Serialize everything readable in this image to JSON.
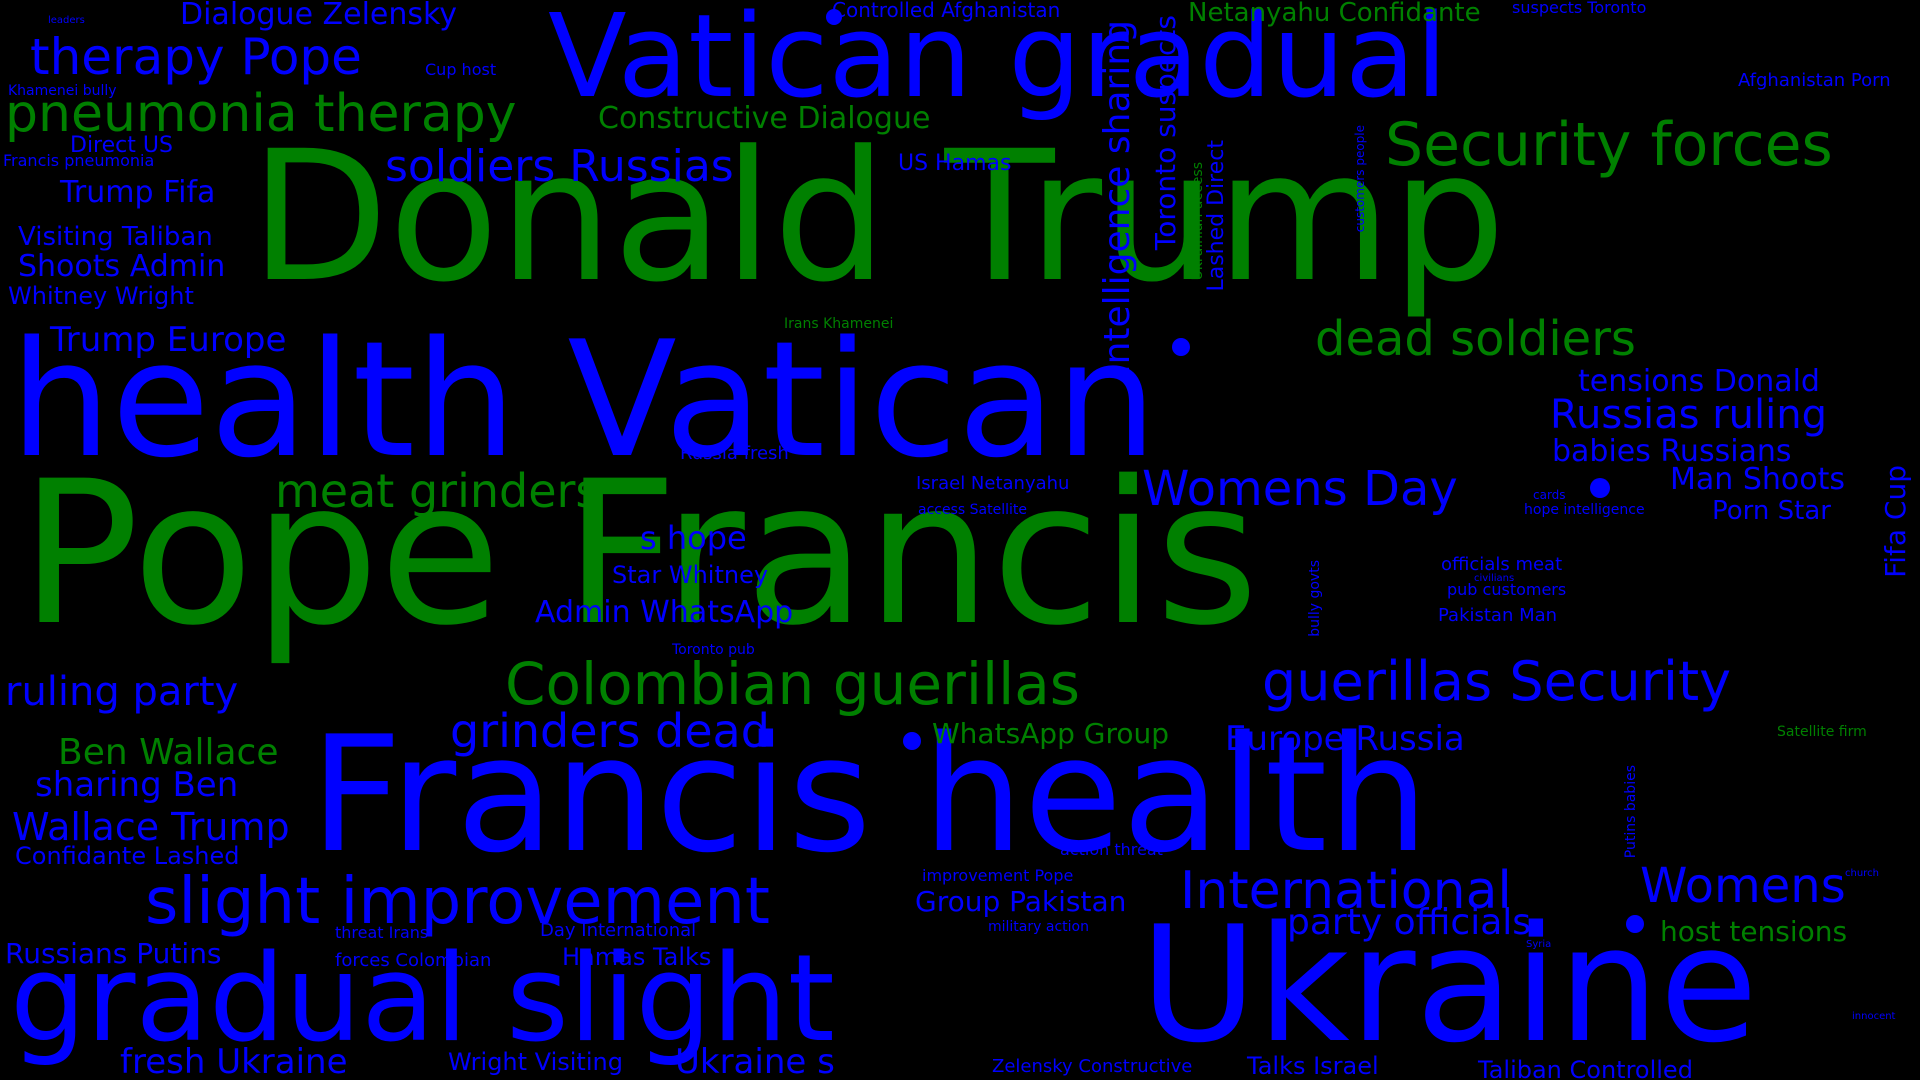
{
  "colors": {
    "background": "#000000",
    "blue": "#0000ff",
    "green": "#008000"
  },
  "words": [
    {
      "text": "Pope Francis",
      "color": "green"
    },
    {
      "text": "health Vatican",
      "color": "blue"
    },
    {
      "text": "Donald Trump",
      "color": "green"
    },
    {
      "text": "Francis health",
      "color": "blue"
    },
    {
      "text": "Ukraine",
      "color": "blue"
    },
    {
      "text": "gradual slight",
      "color": "blue"
    },
    {
      "text": "Vatican gradual",
      "color": "blue"
    },
    {
      "text": "slight improvement",
      "color": "blue"
    },
    {
      "text": "Colombian guerillas",
      "color": "green"
    },
    {
      "text": "guerillas Security",
      "color": "blue"
    },
    {
      "text": "Security forces",
      "color": "green"
    },
    {
      "text": "International",
      "color": "blue"
    },
    {
      "text": "pneumonia therapy",
      "color": "green"
    },
    {
      "text": "therapy Pope",
      "color": "blue"
    },
    {
      "text": "dead soldiers",
      "color": "green"
    },
    {
      "text": "meat grinders",
      "color": "green"
    },
    {
      "text": "grinders dead",
      "color": "blue"
    },
    {
      "text": "soldiers Russias",
      "color": "blue"
    },
    {
      "text": "Womens Day",
      "color": "blue"
    },
    {
      "text": "Womens",
      "color": "blue"
    },
    {
      "text": "intelligence sharing",
      "color": "blue"
    },
    {
      "text": "Russias ruling",
      "color": "blue"
    },
    {
      "text": "party officials",
      "color": "blue"
    },
    {
      "text": "ruling party",
      "color": "blue"
    },
    {
      "text": "Europe Russia",
      "color": "blue"
    },
    {
      "text": "Wallace Trump",
      "color": "blue"
    },
    {
      "text": "Ben Wallace",
      "color": "green"
    },
    {
      "text": "Trump Europe",
      "color": "blue"
    },
    {
      "text": "Constructive Dialogue",
      "color": "green"
    },
    {
      "text": "Dialogue Zelensky",
      "color": "blue"
    },
    {
      "text": "Ukraine s",
      "color": "blue"
    },
    {
      "text": "host tensions",
      "color": "green"
    },
    {
      "text": "sharing Ben",
      "color": "blue"
    },
    {
      "text": "Toronto suspects",
      "color": "blue"
    },
    {
      "text": "tensions Donald",
      "color": "blue"
    },
    {
      "text": "babies Russians",
      "color": "blue"
    },
    {
      "text": "Man Shoots",
      "color": "blue"
    },
    {
      "text": "Admin WhatsApp",
      "color": "blue"
    },
    {
      "text": "WhatsApp Group",
      "color": "green"
    },
    {
      "text": "Group Pakistan",
      "color": "blue"
    },
    {
      "text": "Shoots Admin",
      "color": "blue"
    },
    {
      "text": "s hope",
      "color": "blue"
    },
    {
      "text": "Russians Putins",
      "color": "blue"
    },
    {
      "text": "fresh Ukraine",
      "color": "blue"
    },
    {
      "text": "Trump Fifa",
      "color": "blue"
    },
    {
      "text": "Netanyahu Confidante",
      "color": "green"
    },
    {
      "text": "Visiting Taliban",
      "color": "blue"
    },
    {
      "text": "Star Whitney",
      "color": "blue"
    },
    {
      "text": "Wright Visiting",
      "color": "blue"
    },
    {
      "text": "Whitney Wright",
      "color": "blue"
    },
    {
      "text": "Confidante Lashed",
      "color": "blue"
    },
    {
      "text": "Taliban Controlled",
      "color": "blue"
    },
    {
      "text": "Talks Israel",
      "color": "blue"
    },
    {
      "text": "Porn Star",
      "color": "blue"
    },
    {
      "text": "Fifa Cup",
      "color": "blue"
    },
    {
      "text": "Hamas Talks",
      "color": "blue"
    },
    {
      "text": "US Hamas",
      "color": "blue"
    },
    {
      "text": "Direct US",
      "color": "blue"
    },
    {
      "text": "Lashed Direct",
      "color": "blue"
    },
    {
      "text": "Controlled Afghanistan",
      "color": "blue"
    },
    {
      "text": "Afghanistan Porn",
      "color": "blue"
    },
    {
      "text": "Zelensky Constructive",
      "color": "blue"
    },
    {
      "text": "officials meat",
      "color": "blue"
    },
    {
      "text": "pub customers",
      "color": "blue"
    },
    {
      "text": "Pakistan Man",
      "color": "blue"
    },
    {
      "text": "Russia fresh",
      "color": "blue"
    },
    {
      "text": "Israel Netanyahu",
      "color": "blue"
    },
    {
      "text": "action threat",
      "color": "blue"
    },
    {
      "text": "improvement Pope",
      "color": "blue"
    },
    {
      "text": "forces Colombian",
      "color": "blue"
    },
    {
      "text": "threat Irans",
      "color": "blue"
    },
    {
      "text": "Day International",
      "color": "blue"
    },
    {
      "text": "military action",
      "color": "blue"
    },
    {
      "text": "Francis pneumonia",
      "color": "blue"
    },
    {
      "text": "Cup host",
      "color": "blue"
    },
    {
      "text": "Khamenei bully",
      "color": "blue"
    },
    {
      "text": "suspects Toronto",
      "color": "blue"
    },
    {
      "text": "Satellite firm",
      "color": "green"
    },
    {
      "text": "Irans Khamenei",
      "color": "green"
    },
    {
      "text": "access Satellite",
      "color": "blue"
    },
    {
      "text": "Toronto pub",
      "color": "blue"
    },
    {
      "text": "hope intelligence",
      "color": "blue"
    },
    {
      "text": "Ukrainian access",
      "color": "green"
    },
    {
      "text": "customers people",
      "color": "blue"
    },
    {
      "text": "bully govts",
      "color": "blue"
    },
    {
      "text": "Putins babies",
      "color": "blue"
    },
    {
      "text": "cards",
      "color": "blue"
    },
    {
      "text": "civilians",
      "color": "blue"
    },
    {
      "text": "leaders",
      "color": "blue"
    },
    {
      "text": "Syria",
      "color": "blue"
    },
    {
      "text": "church",
      "color": "blue"
    },
    {
      "text": "innocent",
      "color": "blue"
    }
  ]
}
